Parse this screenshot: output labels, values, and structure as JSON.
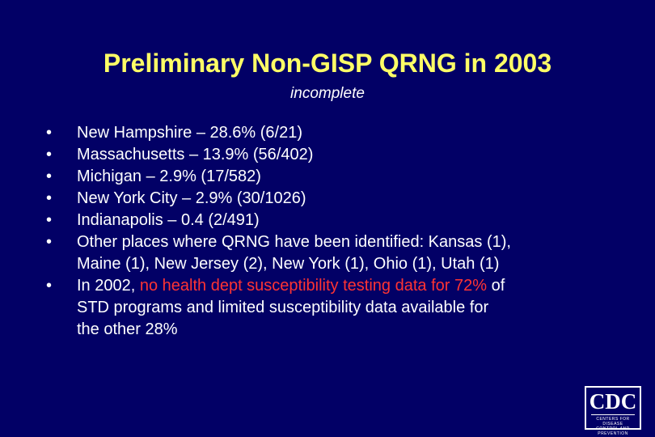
{
  "slide": {
    "title": "Preliminary Non-GISP QRNG in 2003",
    "subtitle": "incomplete",
    "bullet_marker": "•",
    "bullets": [
      {
        "text": "New Hampshire – 28.6% (6/21)"
      },
      {
        "text": "Massachusetts – 13.9% (56/402)"
      },
      {
        "text": "Michigan – 2.9% (17/582)"
      },
      {
        "text": "New York City – 2.9% (30/1026)"
      },
      {
        "text": "Indianapolis – 0.4 (2/491)"
      },
      {
        "line1": "Other places where QRNG have been identified: Kansas (1),",
        "line2": "Maine (1), New Jersey (2), New York (1), Ohio (1), Utah (1)"
      },
      {
        "prefix": "In 2002, ",
        "highlight": "no health dept susceptibility testing data for 72%",
        "suffix": " of",
        "line2": "STD programs and limited susceptibility data available for",
        "line3": "the other 28%"
      }
    ]
  },
  "logo": {
    "text": "CDC",
    "line1": "CENTERS FOR DISEASE",
    "line2": "CONTROL AND PREVENTION"
  },
  "colors": {
    "background": "#020066",
    "title": "#ffff66",
    "body_text": "#ffffff",
    "highlight": "#ff3333"
  }
}
